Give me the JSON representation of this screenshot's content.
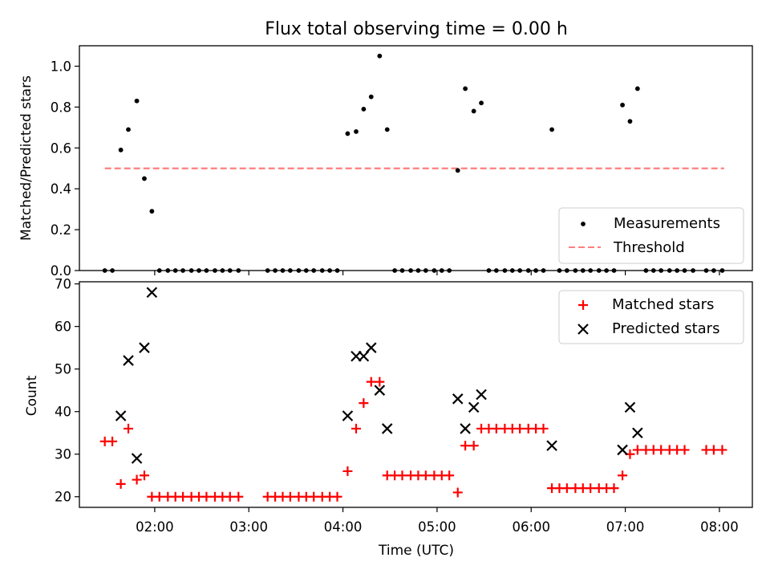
{
  "figure": {
    "title": "Flux total observing time = 0.00 h",
    "xlabel": "Time (UTC)",
    "x_tick_labels": [
      "02:00",
      "03:00",
      "04:00",
      "05:00",
      "06:00",
      "07:00",
      "08:00"
    ]
  },
  "chart_data": [
    {
      "type": "scatter",
      "panel": "top",
      "title": "Flux total observing time = 0.00 h",
      "xlabel": "",
      "ylabel": "Matched/Predicted stars",
      "x_unit": "hours UTC",
      "xlim": [
        1.2,
        8.35
      ],
      "ylim": [
        0.0,
        1.1
      ],
      "y_ticks": [
        0.0,
        0.2,
        0.4,
        0.6,
        0.8,
        1.0
      ],
      "y_tick_labels": [
        "0.0",
        "0.2",
        "0.4",
        "0.6",
        "0.8",
        "1.0"
      ],
      "legend_position": "lower-right",
      "series": [
        {
          "name": "Measurements",
          "kind": "points",
          "color": "#000000",
          "points": [
            [
              1.47,
              0.0
            ],
            [
              1.55,
              0.0
            ],
            [
              1.64,
              0.59
            ],
            [
              1.72,
              0.69
            ],
            [
              1.81,
              0.83
            ],
            [
              1.89,
              0.45
            ],
            [
              1.97,
              0.29
            ],
            [
              2.05,
              0.0
            ],
            [
              2.14,
              0.0
            ],
            [
              2.22,
              0.0
            ],
            [
              2.3,
              0.0
            ],
            [
              2.39,
              0.0
            ],
            [
              2.47,
              0.0
            ],
            [
              2.55,
              0.0
            ],
            [
              2.64,
              0.0
            ],
            [
              2.72,
              0.0
            ],
            [
              2.8,
              0.0
            ],
            [
              2.89,
              0.0
            ],
            [
              3.2,
              0.0
            ],
            [
              3.28,
              0.0
            ],
            [
              3.36,
              0.0
            ],
            [
              3.44,
              0.0
            ],
            [
              3.53,
              0.0
            ],
            [
              3.61,
              0.0
            ],
            [
              3.69,
              0.0
            ],
            [
              3.78,
              0.0
            ],
            [
              3.86,
              0.0
            ],
            [
              3.94,
              0.0
            ],
            [
              4.05,
              0.67
            ],
            [
              4.14,
              0.68
            ],
            [
              4.22,
              0.79
            ],
            [
              4.3,
              0.85
            ],
            [
              4.39,
              1.05
            ],
            [
              4.47,
              0.69
            ],
            [
              4.55,
              0.0
            ],
            [
              4.63,
              0.0
            ],
            [
              4.72,
              0.0
            ],
            [
              4.8,
              0.0
            ],
            [
              4.88,
              0.0
            ],
            [
              4.97,
              0.0
            ],
            [
              5.05,
              0.0
            ],
            [
              5.13,
              0.0
            ],
            [
              5.22,
              0.49
            ],
            [
              5.3,
              0.89
            ],
            [
              5.39,
              0.78
            ],
            [
              5.47,
              0.82
            ],
            [
              5.55,
              0.0
            ],
            [
              5.63,
              0.0
            ],
            [
              5.72,
              0.0
            ],
            [
              5.8,
              0.0
            ],
            [
              5.88,
              0.0
            ],
            [
              5.97,
              0.0
            ],
            [
              6.05,
              0.0
            ],
            [
              6.13,
              0.0
            ],
            [
              6.22,
              0.69
            ],
            [
              6.3,
              0.0
            ],
            [
              6.38,
              0.0
            ],
            [
              6.47,
              0.0
            ],
            [
              6.55,
              0.0
            ],
            [
              6.63,
              0.0
            ],
            [
              6.72,
              0.0
            ],
            [
              6.8,
              0.0
            ],
            [
              6.88,
              0.0
            ],
            [
              6.97,
              0.81
            ],
            [
              7.05,
              0.73
            ],
            [
              7.13,
              0.89
            ],
            [
              7.22,
              0.0
            ],
            [
              7.3,
              0.0
            ],
            [
              7.38,
              0.0
            ],
            [
              7.47,
              0.0
            ],
            [
              7.55,
              0.0
            ],
            [
              7.63,
              0.0
            ],
            [
              7.72,
              0.0
            ],
            [
              7.86,
              0.0
            ],
            [
              7.94,
              0.0
            ],
            [
              8.03,
              0.0
            ]
          ]
        },
        {
          "name": "Threshold",
          "kind": "dashed-line",
          "color": "#ff7f7f",
          "points": [
            [
              1.47,
              0.5
            ],
            [
              8.05,
              0.5
            ]
          ]
        }
      ]
    },
    {
      "type": "scatter",
      "panel": "bottom",
      "xlabel": "Time (UTC)",
      "ylabel": "Count",
      "x_unit": "hours UTC",
      "xlim": [
        1.2,
        8.35
      ],
      "ylim": [
        17.5,
        70.5
      ],
      "y_ticks": [
        20,
        30,
        40,
        50,
        60,
        70
      ],
      "y_tick_labels": [
        "20",
        "30",
        "40",
        "50",
        "60",
        "70"
      ],
      "x_ticks": [
        2,
        3,
        4,
        5,
        6,
        7,
        8
      ],
      "x_tick_labels": [
        "02:00",
        "03:00",
        "04:00",
        "05:00",
        "06:00",
        "07:00",
        "08:00"
      ],
      "legend_position": "top-right",
      "series": [
        {
          "name": "Matched stars",
          "marker": "+",
          "color": "#ff0000",
          "points": [
            [
              1.47,
              33
            ],
            [
              1.55,
              33
            ],
            [
              1.64,
              23
            ],
            [
              1.72,
              36
            ],
            [
              1.81,
              24
            ],
            [
              1.89,
              25
            ],
            [
              1.97,
              20
            ],
            [
              2.05,
              20
            ],
            [
              2.14,
              20
            ],
            [
              2.22,
              20
            ],
            [
              2.3,
              20
            ],
            [
              2.39,
              20
            ],
            [
              2.47,
              20
            ],
            [
              2.55,
              20
            ],
            [
              2.64,
              20
            ],
            [
              2.72,
              20
            ],
            [
              2.8,
              20
            ],
            [
              2.89,
              20
            ],
            [
              3.2,
              20
            ],
            [
              3.28,
              20
            ],
            [
              3.36,
              20
            ],
            [
              3.44,
              20
            ],
            [
              3.53,
              20
            ],
            [
              3.61,
              20
            ],
            [
              3.69,
              20
            ],
            [
              3.78,
              20
            ],
            [
              3.86,
              20
            ],
            [
              3.94,
              20
            ],
            [
              4.05,
              26
            ],
            [
              4.14,
              36
            ],
            [
              4.22,
              42
            ],
            [
              4.3,
              47
            ],
            [
              4.39,
              47
            ],
            [
              4.47,
              25
            ],
            [
              4.55,
              25
            ],
            [
              4.63,
              25
            ],
            [
              4.72,
              25
            ],
            [
              4.8,
              25
            ],
            [
              4.88,
              25
            ],
            [
              4.97,
              25
            ],
            [
              5.05,
              25
            ],
            [
              5.13,
              25
            ],
            [
              5.22,
              21
            ],
            [
              5.3,
              32
            ],
            [
              5.39,
              32
            ],
            [
              5.47,
              36
            ],
            [
              5.55,
              36
            ],
            [
              5.63,
              36
            ],
            [
              5.72,
              36
            ],
            [
              5.8,
              36
            ],
            [
              5.88,
              36
            ],
            [
              5.97,
              36
            ],
            [
              6.05,
              36
            ],
            [
              6.13,
              36
            ],
            [
              6.22,
              22
            ],
            [
              6.3,
              22
            ],
            [
              6.38,
              22
            ],
            [
              6.47,
              22
            ],
            [
              6.55,
              22
            ],
            [
              6.63,
              22
            ],
            [
              6.72,
              22
            ],
            [
              6.8,
              22
            ],
            [
              6.88,
              22
            ],
            [
              6.97,
              25
            ],
            [
              7.05,
              30
            ],
            [
              7.13,
              31
            ],
            [
              7.22,
              31
            ],
            [
              7.3,
              31
            ],
            [
              7.38,
              31
            ],
            [
              7.47,
              31
            ],
            [
              7.55,
              31
            ],
            [
              7.63,
              31
            ],
            [
              7.86,
              31
            ],
            [
              7.94,
              31
            ],
            [
              8.03,
              31
            ]
          ]
        },
        {
          "name": "Predicted stars",
          "marker": "x",
          "color": "#000000",
          "points": [
            [
              1.64,
              39
            ],
            [
              1.72,
              52
            ],
            [
              1.81,
              29
            ],
            [
              1.89,
              55
            ],
            [
              1.97,
              68
            ],
            [
              4.05,
              39
            ],
            [
              4.14,
              53
            ],
            [
              4.22,
              53
            ],
            [
              4.3,
              55
            ],
            [
              4.39,
              45
            ],
            [
              4.47,
              36
            ],
            [
              5.22,
              43
            ],
            [
              5.3,
              36
            ],
            [
              5.39,
              41
            ],
            [
              5.47,
              44
            ],
            [
              6.22,
              32
            ],
            [
              6.97,
              31
            ],
            [
              7.05,
              41
            ],
            [
              7.13,
              35
            ]
          ]
        }
      ]
    }
  ]
}
